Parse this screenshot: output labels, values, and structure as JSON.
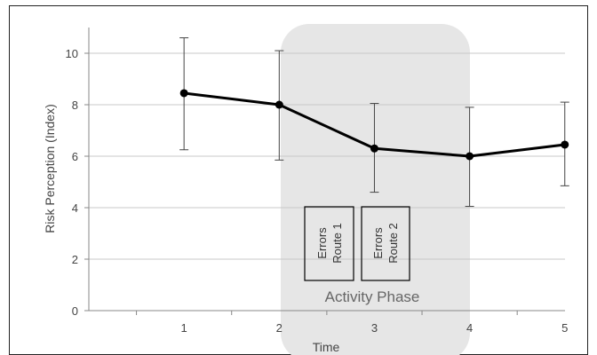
{
  "chart_data": {
    "type": "line",
    "xlabel": "Time",
    "ylabel": "Risk Perception  (Index)",
    "x": [
      1,
      2,
      3,
      4,
      5
    ],
    "xlim": [
      0,
      6
    ],
    "ylim": [
      0,
      11
    ],
    "yticks": [
      0,
      2,
      4,
      6,
      8,
      10
    ],
    "grid": "horizontal",
    "series": [
      {
        "values": [
          8.45,
          8.0,
          6.3,
          6.0,
          6.45
        ],
        "error_high": [
          10.6,
          10.1,
          8.05,
          7.9,
          8.1
        ],
        "error_low": [
          6.25,
          5.85,
          4.6,
          4.05,
          4.85
        ]
      }
    ],
    "annotations": {
      "phase_label": "Activity Phase",
      "box1": [
        "Errors",
        "Route  1"
      ],
      "box2": [
        "Errors",
        "Route  2"
      ]
    },
    "colors": {
      "line": "#000000",
      "grid": "#c8c8c8",
      "phase_region": "#e6e6e6",
      "text": "#555555"
    }
  }
}
